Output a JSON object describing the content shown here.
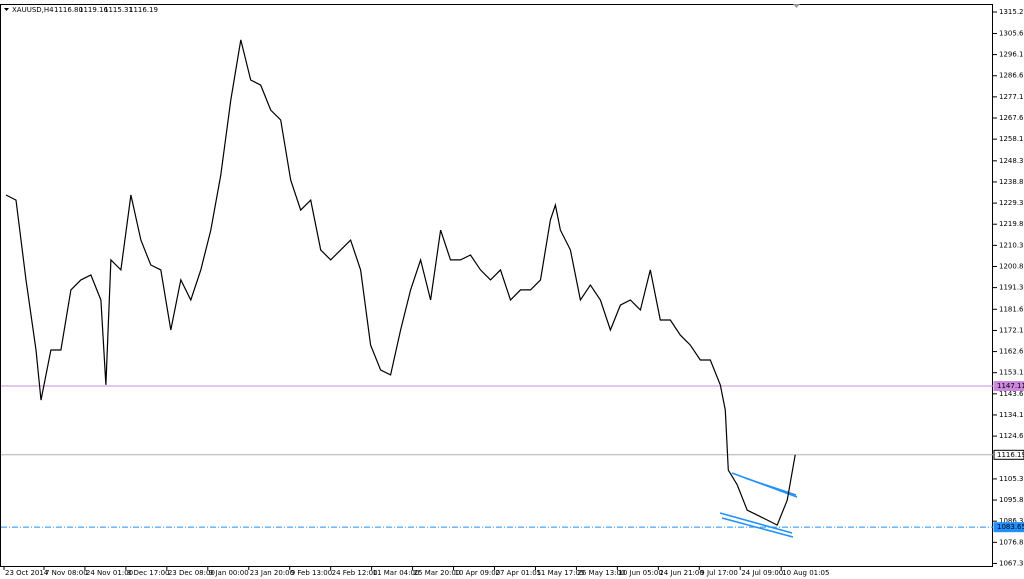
{
  "chart_data": {
    "type": "line",
    "symbol": "XAUUSD,H4",
    "ohlc": [
      "1116.80",
      "1119.16",
      "1115.31",
      "1116.19"
    ],
    "series": [
      {
        "color": "#000000",
        "x": [
          5,
          15,
          25,
          35,
          40,
          50,
          60,
          70,
          80,
          90,
          100,
          105,
          110,
          120,
          130,
          140,
          150,
          160,
          170,
          180,
          190,
          200,
          210,
          220,
          230,
          240,
          250,
          260,
          270,
          280,
          290,
          300,
          310,
          320,
          330,
          340,
          350,
          360,
          370,
          380,
          390,
          400,
          410,
          420,
          430,
          440,
          450,
          460,
          470,
          480,
          490,
          500,
          510,
          520,
          530,
          540,
          550,
          555,
          560,
          570,
          580,
          590,
          600,
          610,
          620,
          630,
          640,
          650,
          660,
          670,
          680,
          690,
          700,
          710,
          720,
          725,
          728,
          737,
          747,
          757,
          767,
          777,
          787,
          795
        ],
        "values": [
          1233.0,
          1230.7,
          1194.8,
          1163.3,
          1140.8,
          1163.3,
          1163.3,
          1190.3,
          1194.8,
          1197.0,
          1185.8,
          1147.6,
          1203.8,
          1199.3,
          1233.0,
          1212.7,
          1201.5,
          1199.3,
          1172.3,
          1194.8,
          1185.8,
          1199.3,
          1217.2,
          1242.0,
          1275.7,
          1302.7,
          1284.7,
          1282.4,
          1271.2,
          1266.7,
          1239.7,
          1226.2,
          1230.7,
          1208.3,
          1203.8,
          1208.3,
          1212.7,
          1199.3,
          1165.5,
          1154.3,
          1152.1,
          1172.3,
          1190.3,
          1203.8,
          1185.8,
          1217.2,
          1203.8,
          1203.8,
          1206.0,
          1199.3,
          1194.8,
          1199.3,
          1185.8,
          1190.3,
          1190.3,
          1194.8,
          1221.8,
          1228.5,
          1217.2,
          1208.3,
          1185.8,
          1192.5,
          1185.8,
          1172.3,
          1183.5,
          1185.8,
          1181.3,
          1199.3,
          1176.8,
          1176.8,
          1170.0,
          1165.5,
          1158.8,
          1158.8,
          1147.6,
          1136.3,
          1109.3,
          1102.6,
          1091.3,
          1089.1,
          1086.9,
          1084.6,
          1095.8,
          1116.2
        ]
      }
    ],
    "levels": [
      {
        "value": 1147.11,
        "color": "#cc88dd",
        "dash": "none",
        "label_fill": "#cc88dd",
        "label_text": "#ffffff"
      },
      {
        "value": 1116.19,
        "color": "#b0b0b0",
        "dash": "none",
        "label_fill": "#ffffff",
        "label_text": "#000000"
      },
      {
        "value": 1083.65,
        "color": "#1e90ff",
        "dash": "6 2 1 2",
        "label_fill": "#1e90ff",
        "label_text": "#ffffff"
      }
    ],
    "xlim": [
      0,
      993
    ],
    "xticks": [
      {
        "value": 3,
        "label": "23 Oct 2014"
      },
      {
        "value": 43,
        "label": "7 Nov 08:00"
      },
      {
        "value": 84,
        "label": "24 Nov 01:00"
      },
      {
        "value": 125,
        "label": "8 Dec 17:00"
      },
      {
        "value": 166,
        "label": "23 Dec 08:00"
      },
      {
        "value": 207,
        "label": "9 Jan 00:00"
      },
      {
        "value": 248,
        "label": "23 Jan 20:00"
      },
      {
        "value": 289,
        "label": "9 Feb 13:00"
      },
      {
        "value": 330,
        "label": "24 Feb 12:00"
      },
      {
        "value": 371,
        "label": "11 Mar 04:00"
      },
      {
        "value": 412,
        "label": "25 Mar 20:00"
      },
      {
        "value": 453,
        "label": "10 Apr 09:00"
      },
      {
        "value": 494,
        "label": "27 Apr 01:05"
      },
      {
        "value": 535,
        "label": "11 May 17:05"
      },
      {
        "value": 576,
        "label": "26 May 13:00"
      },
      {
        "value": 617,
        "label": "10 Jun 05:00"
      },
      {
        "value": 658,
        "label": "24 Jun 21:00"
      },
      {
        "value": 699,
        "label": "9 Jul 17:00"
      },
      {
        "value": 740,
        "label": "24 Jul 09:00"
      },
      {
        "value": 781,
        "label": "10 Aug 01:05"
      }
    ],
    "ylim": [
      1066.2,
      1318.4
    ],
    "yticks": [
      1315.25,
      {
        "value": 1305.6,
        "label": "1305.60"
      },
      {
        "value": 1296.1,
        "label": "1296.10"
      },
      {
        "value": 1286.6,
        "label": "1286.60"
      },
      {
        "value": 1277.1,
        "label": "1277.10"
      },
      {
        "value": 1267.6,
        "label": "1267.60"
      },
      {
        "value": 1258.1,
        "label": "1258.10"
      },
      1248.35,
      1238.85,
      1229.35,
      1219.85,
      1210.35,
      1200.85,
      1191.35,
      {
        "value": 1181.6,
        "label": "1181.60"
      },
      {
        "value": 1172.1,
        "label": "1172.10"
      },
      {
        "value": 1162.6,
        "label": "1162.60"
      },
      {
        "value": 1153.1,
        "label": "1153.10"
      },
      {
        "value": 1143.6,
        "label": "1143.60"
      },
      {
        "value": 1134.1,
        "label": "1134.10"
      },
      {
        "value": 1124.6,
        "label": "1124.60"
      },
      1105.35,
      1095.85,
      1086.35,
      1076.85,
      1067.35
    ]
  }
}
